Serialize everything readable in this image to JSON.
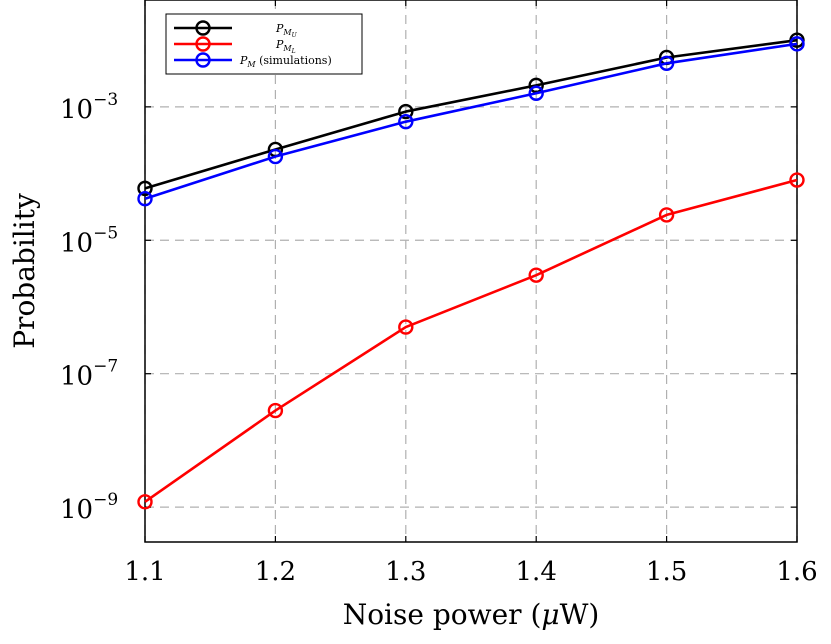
{
  "chart_data": {
    "type": "line",
    "y_scale": "log",
    "x": [
      1.1,
      1.2,
      1.3,
      1.4,
      1.5,
      1.6
    ],
    "xlabel": {
      "prefix": "Noise power (",
      "mu": "μ",
      "suffix": "W)"
    },
    "ylabel": "Probability",
    "xlim": [
      1.1,
      1.6
    ],
    "ylim": [
      3e-10,
      0.04
    ],
    "x_ticks": [
      "1.1",
      "1.2",
      "1.3",
      "1.4",
      "1.5",
      "1.6"
    ],
    "y_ticks": [
      {
        "value": 0.001,
        "base": "10",
        "exp": "−3"
      },
      {
        "value": 1e-05,
        "base": "10",
        "exp": "−5"
      },
      {
        "value": 1e-07,
        "base": "10",
        "exp": "−7"
      },
      {
        "value": 1e-09,
        "base": "10",
        "exp": "−9"
      }
    ],
    "grid": true,
    "legend_position": "top-left",
    "series": [
      {
        "key": "upper",
        "legend_main": "P",
        "legend_sub": "M",
        "legend_subsub": "U",
        "legend_suffix": "",
        "color": "#000000",
        "values": [
          6e-05,
          0.00023,
          0.00085,
          0.0021,
          0.0055,
          0.01
        ]
      },
      {
        "key": "lower",
        "legend_main": "P",
        "legend_sub": "M",
        "legend_subsub": "L",
        "legend_suffix": "",
        "color": "#ff0000",
        "values": [
          1.2e-09,
          2.8e-08,
          5e-07,
          3e-06,
          2.4e-05,
          8e-05
        ]
      },
      {
        "key": "sim",
        "legend_main": "P",
        "legend_sub": "M",
        "legend_subsub": "",
        "legend_suffix": " (simulations)",
        "color": "#0000ff",
        "values": [
          4.2e-05,
          0.00018,
          0.0006,
          0.0016,
          0.0045,
          0.0088
        ]
      }
    ]
  }
}
